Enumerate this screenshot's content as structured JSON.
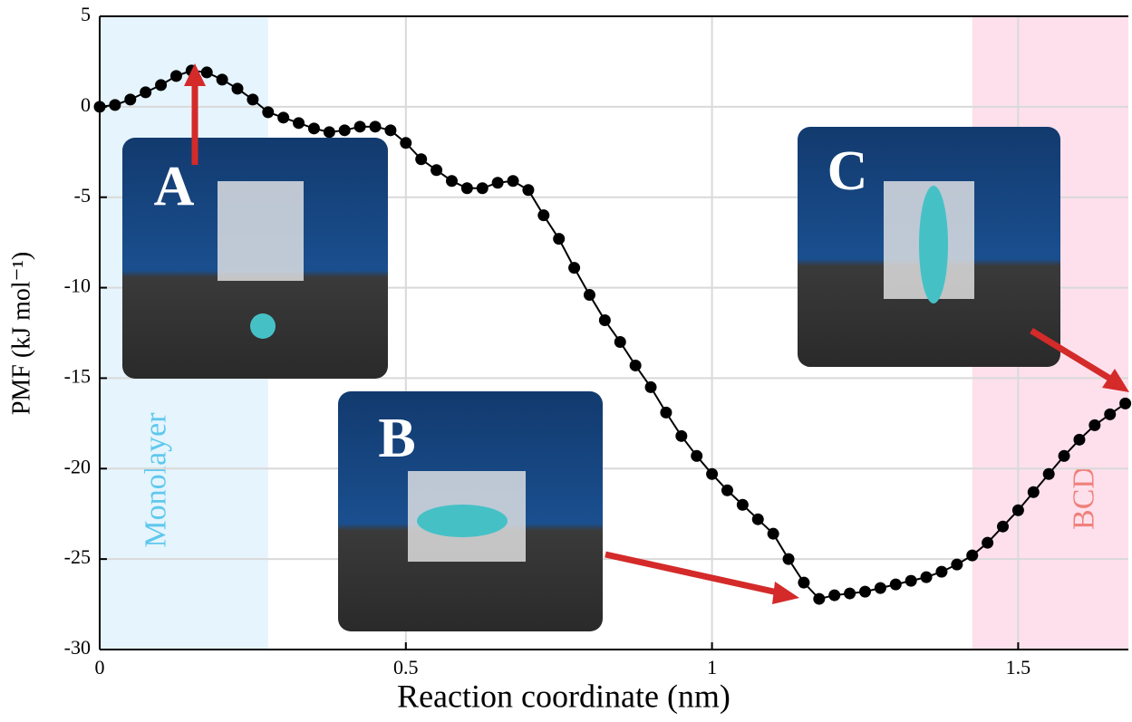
{
  "chart_data": {
    "type": "line",
    "xlabel": "Reaction coordinate (nm)",
    "ylabel": "PMF (kJ mol⁻¹)",
    "x": [
      0,
      0.025,
      0.05,
      0.075,
      0.1,
      0.125,
      0.15,
      0.175,
      0.2,
      0.225,
      0.25,
      0.275,
      0.3,
      0.325,
      0.35,
      0.375,
      0.4,
      0.425,
      0.45,
      0.475,
      0.5,
      0.525,
      0.55,
      0.575,
      0.6,
      0.625,
      0.65,
      0.675,
      0.7,
      0.725,
      0.75,
      0.775,
      0.8,
      0.825,
      0.85,
      0.875,
      0.9,
      0.925,
      0.95,
      0.975,
      1,
      1.025,
      1.05,
      1.075,
      1.1,
      1.125,
      1.15,
      1.175,
      1.2,
      1.225,
      1.25,
      1.275,
      1.3,
      1.325,
      1.35,
      1.375,
      1.4,
      1.425,
      1.45,
      1.475,
      1.5,
      1.525,
      1.55,
      1.575,
      1.6,
      1.625,
      1.65,
      1.675
    ],
    "series": [
      {
        "name": "PMF",
        "color": "#000000",
        "values": [
          0,
          0.1,
          0.4,
          0.8,
          1.2,
          1.7,
          2.0,
          1.9,
          1.5,
          1.0,
          0.4,
          -0.3,
          -0.6,
          -0.9,
          -1.2,
          -1.4,
          -1.3,
          -1.1,
          -1.1,
          -1.3,
          -2.0,
          -2.9,
          -3.5,
          -4.1,
          -4.5,
          -4.5,
          -4.2,
          -4.1,
          -4.6,
          -6.0,
          -7.3,
          -8.9,
          -10.4,
          -11.8,
          -13.0,
          -14.3,
          -15.5,
          -16.9,
          -18.2,
          -19.3,
          -20.3,
          -21.2,
          -22.0,
          -22.8,
          -23.6,
          -25.0,
          -26.3,
          -27.2,
          -27.0,
          -26.9,
          -26.8,
          -26.6,
          -26.4,
          -26.2,
          -26.0,
          -25.7,
          -25.3,
          -24.8,
          -24.1,
          -23.2,
          -22.3,
          -21.3,
          -20.3,
          -19.3,
          -18.4,
          -17.6,
          -17.0,
          -16.4
        ]
      }
    ],
    "xlim": [
      0,
      1.68
    ],
    "ylim": [
      -30,
      5
    ],
    "xticks": [
      0,
      0.5,
      1,
      1.5
    ],
    "yticks": [
      5,
      0,
      -5,
      -10,
      -15,
      -20,
      -25,
      -30
    ],
    "grid": true,
    "regions": [
      {
        "label": "Monolayer",
        "range": [
          0,
          0.275
        ],
        "color": "#e5f4fd",
        "text_color": "#5ec8ee"
      },
      {
        "label": "BCD",
        "range": [
          1.425,
          1.68
        ],
        "color": "#fde0ec",
        "text_color": "#f0807a"
      }
    ],
    "annotations": [
      "A",
      "B",
      "C"
    ]
  }
}
